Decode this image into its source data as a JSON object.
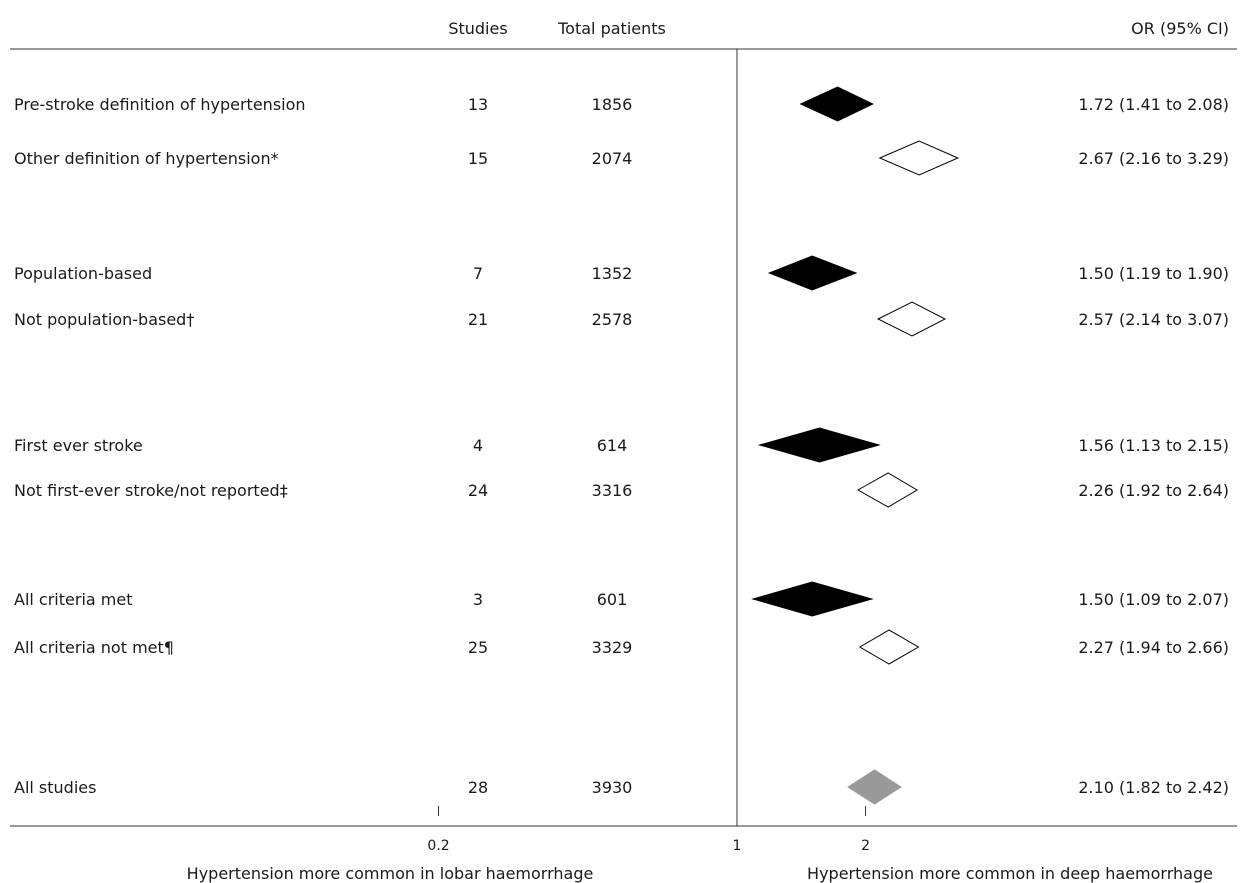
{
  "chart_data": {
    "type": "forest",
    "x_scale": "log",
    "headers": {
      "studies": "Studies",
      "patients": "Total patients",
      "or": "OR (95% CI)"
    },
    "rows": [
      {
        "label": "Pre-stroke definition of hypertension",
        "studies": "13",
        "patients": "1856",
        "or_text": "1.72 (1.41 to 2.08)",
        "or": 1.72,
        "lo": 1.41,
        "hi": 2.08,
        "fill": "#000000"
      },
      {
        "label": "Other definition of hypertension*",
        "studies": "15",
        "patients": "2074",
        "or_text": "2.67 (2.16 to 3.29)",
        "or": 2.67,
        "lo": 2.16,
        "hi": 3.29,
        "fill": "#ffffff"
      },
      {
        "label": "Population-based",
        "studies": "7",
        "patients": "1352",
        "or_text": "1.50 (1.19 to 1.90)",
        "or": 1.5,
        "lo": 1.19,
        "hi": 1.9,
        "fill": "#000000"
      },
      {
        "label": "Not population-based†",
        "studies": "21",
        "patients": "2578",
        "or_text": "2.57 (2.14 to 3.07)",
        "or": 2.57,
        "lo": 2.14,
        "hi": 3.07,
        "fill": "#ffffff"
      },
      {
        "label": "First ever stroke",
        "studies": "4",
        "patients": "614",
        "or_text": "1.56 (1.13 to 2.15)",
        "or": 1.56,
        "lo": 1.13,
        "hi": 2.15,
        "fill": "#000000"
      },
      {
        "label": "Not first-ever stroke/not reported‡",
        "studies": "24",
        "patients": "3316",
        "or_text": "2.26 (1.92 to 2.64)",
        "or": 2.26,
        "lo": 1.92,
        "hi": 2.64,
        "fill": "#ffffff"
      },
      {
        "label": "All criteria met",
        "studies": "3",
        "patients": "601",
        "or_text": "1.50 (1.09 to 2.07)",
        "or": 1.5,
        "lo": 1.09,
        "hi": 2.07,
        "fill": "#000000"
      },
      {
        "label": "All criteria not met¶",
        "studies": "25",
        "patients": "3329",
        "or_text": "2.27 (1.94 to 2.66)",
        "or": 2.27,
        "lo": 1.94,
        "hi": 2.66,
        "fill": "#ffffff"
      },
      {
        "label": "All studies",
        "studies": "28",
        "patients": "3930",
        "or_text": "2.10 (1.82 to 2.42)",
        "or": 2.1,
        "lo": 1.82,
        "hi": 2.42,
        "fill": "#999999"
      }
    ],
    "x_ticks": [
      {
        "value": 0.2,
        "label": "0.2"
      },
      {
        "value": 1,
        "label": "1"
      },
      {
        "value": 2,
        "label": "2"
      }
    ],
    "reference_line": 1,
    "xlabel_left": "Hypertension more common in lobar haemorrhage",
    "xlabel_right": "Hypertension more common in deep haemorrhage"
  }
}
